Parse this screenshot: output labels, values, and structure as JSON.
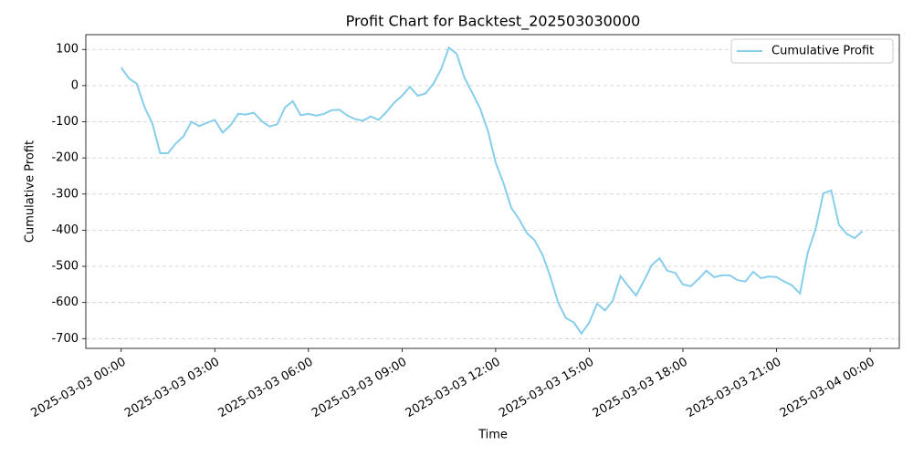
{
  "chart_data": {
    "type": "line",
    "title": "Profit Chart for Backtest_202503030000",
    "x_label": "Time",
    "y_label": "Cumulative Profit",
    "x": [
      "2025-03-03 00:00",
      "2025-03-03 00:15",
      "2025-03-03 00:30",
      "2025-03-03 00:45",
      "2025-03-03 01:00",
      "2025-03-03 01:15",
      "2025-03-03 01:30",
      "2025-03-03 01:45",
      "2025-03-03 02:00",
      "2025-03-03 02:15",
      "2025-03-03 02:30",
      "2025-03-03 02:45",
      "2025-03-03 03:00",
      "2025-03-03 03:15",
      "2025-03-03 03:30",
      "2025-03-03 03:45",
      "2025-03-03 04:00",
      "2025-03-03 04:15",
      "2025-03-03 04:30",
      "2025-03-03 04:45",
      "2025-03-03 05:00",
      "2025-03-03 05:15",
      "2025-03-03 05:30",
      "2025-03-03 05:45",
      "2025-03-03 06:00",
      "2025-03-03 06:15",
      "2025-03-03 06:30",
      "2025-03-03 06:45",
      "2025-03-03 07:00",
      "2025-03-03 07:15",
      "2025-03-03 07:30",
      "2025-03-03 07:45",
      "2025-03-03 08:00",
      "2025-03-03 08:15",
      "2025-03-03 08:30",
      "2025-03-03 08:45",
      "2025-03-03 09:00",
      "2025-03-03 09:15",
      "2025-03-03 09:30",
      "2025-03-03 09:45",
      "2025-03-03 10:00",
      "2025-03-03 10:15",
      "2025-03-03 10:30",
      "2025-03-03 10:45",
      "2025-03-03 11:00",
      "2025-03-03 11:15",
      "2025-03-03 11:30",
      "2025-03-03 11:45",
      "2025-03-03 12:00",
      "2025-03-03 12:15",
      "2025-03-03 12:30",
      "2025-03-03 12:45",
      "2025-03-03 13:00",
      "2025-03-03 13:15",
      "2025-03-03 13:30",
      "2025-03-03 13:45",
      "2025-03-03 14:00",
      "2025-03-03 14:15",
      "2025-03-03 14:30",
      "2025-03-03 14:45",
      "2025-03-03 15:00",
      "2025-03-03 15:15",
      "2025-03-03 15:30",
      "2025-03-03 15:45",
      "2025-03-03 16:00",
      "2025-03-03 16:15",
      "2025-03-03 16:30",
      "2025-03-03 16:45",
      "2025-03-03 17:00",
      "2025-03-03 17:15",
      "2025-03-03 17:30",
      "2025-03-03 17:45",
      "2025-03-03 18:00",
      "2025-03-03 18:15",
      "2025-03-03 18:30",
      "2025-03-03 18:45",
      "2025-03-03 19:00",
      "2025-03-03 19:15",
      "2025-03-03 19:30",
      "2025-03-03 19:45",
      "2025-03-03 20:00",
      "2025-03-03 20:15",
      "2025-03-03 20:30",
      "2025-03-03 20:45",
      "2025-03-03 21:00",
      "2025-03-03 21:15",
      "2025-03-03 21:30",
      "2025-03-03 21:45",
      "2025-03-03 22:00",
      "2025-03-03 22:15",
      "2025-03-03 22:30",
      "2025-03-03 22:45",
      "2025-03-03 23:00",
      "2025-03-03 23:15",
      "2025-03-03 23:30",
      "2025-03-03 23:45"
    ],
    "series": [
      {
        "name": "Cumulative Profit",
        "color": "#87ceeb",
        "values": [
          50,
          20,
          5,
          -60,
          -105,
          -187,
          -187,
          -160,
          -140,
          -100,
          -112,
          -103,
          -95,
          -130,
          -110,
          -78,
          -80,
          -75,
          -98,
          -113,
          -107,
          -60,
          -43,
          -82,
          -78,
          -83,
          -78,
          -68,
          -67,
          -83,
          -93,
          -97,
          -85,
          -95,
          -73,
          -47,
          -28,
          -3,
          -28,
          -22,
          5,
          45,
          105,
          88,
          22,
          -20,
          -63,
          -125,
          -213,
          -270,
          -338,
          -370,
          -408,
          -428,
          -468,
          -528,
          -600,
          -643,
          -655,
          -686,
          -655,
          -603,
          -622,
          -595,
          -527,
          -555,
          -581,
          -540,
          -497,
          -478,
          -512,
          -518,
          -550,
          -555,
          -535,
          -512,
          -530,
          -525,
          -525,
          -538,
          -542,
          -515,
          -533,
          -528,
          -530,
          -542,
          -553,
          -575,
          -462,
          -397,
          -298,
          -290,
          -385,
          -410,
          -422,
          -403
        ]
      }
    ],
    "xlim": [
      "2025-03-02 22:52",
      "2025-03-04 00:56"
    ],
    "xticks": [
      "2025-03-03 00:00",
      "2025-03-03 03:00",
      "2025-03-03 06:00",
      "2025-03-03 09:00",
      "2025-03-03 12:00",
      "2025-03-03 15:00",
      "2025-03-03 18:00",
      "2025-03-03 21:00",
      "2025-03-04 00:00"
    ],
    "ylim": [
      -727,
      141
    ],
    "yticks": [
      -700,
      -600,
      -500,
      -400,
      -300,
      -200,
      -100,
      0,
      100
    ],
    "grid": "y",
    "legend": "upper right"
  }
}
